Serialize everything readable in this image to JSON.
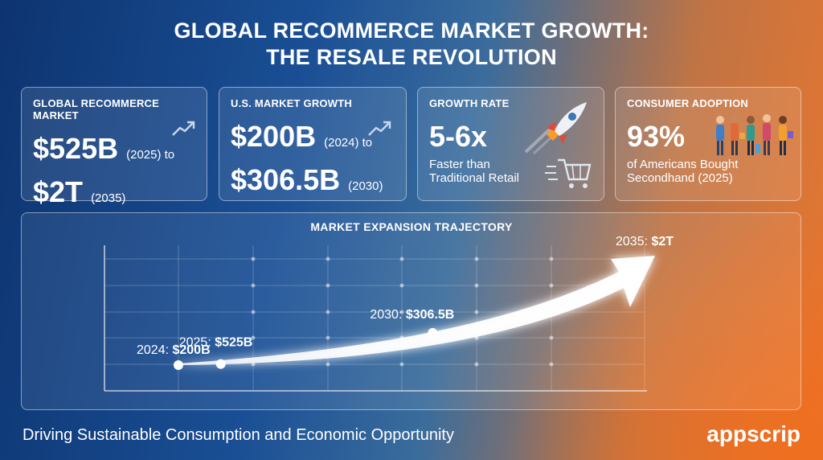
{
  "title": {
    "line1": "GLOBAL RECOMMERCE MARKET GROWTH:",
    "line2": "THE RESALE REVOLUTION"
  },
  "cards": [
    {
      "label": "GLOBAL RECOMMERCE MARKET",
      "big1": "$525B",
      "small1": "(2025) to",
      "big2": "$2T",
      "small2": "(2035)",
      "icon": "trend-up-icon"
    },
    {
      "label": "U.S. MARKET GROWTH",
      "big1": "$200B",
      "small1": "(2024) to",
      "big2": "$306.5B",
      "small2": "(2030)",
      "icon": "trend-up-icon"
    },
    {
      "label": "GROWTH RATE",
      "big1": "5-6x",
      "note1": "Faster than",
      "note2": "Traditional Retail",
      "icon": "rocket-icon"
    },
    {
      "label": "CONSUMER ADOPTION",
      "big1": "93%",
      "note1": "of Americans Bought",
      "note2": "Secondhand (2025)",
      "icon": "shoppers-icon"
    }
  ],
  "chart_data": {
    "type": "line",
    "title": "MARKET EXPANSION TRAJECTORY",
    "points": [
      {
        "year": 2024,
        "prefix": "2024: ",
        "label": "$200B",
        "value": 200
      },
      {
        "year": 2025,
        "prefix": "2025: ",
        "label": "$525B",
        "value": 525
      },
      {
        "year": 2030,
        "prefix": "2030: ",
        "label": "$306.5B",
        "value": 306.5
      },
      {
        "year": 2035,
        "prefix": "2035: ",
        "label": "$2T",
        "value": 2000
      }
    ],
    "grid": true,
    "arrow_color": "#ffffff"
  },
  "footer": "Driving Sustainable Consumption and Economic Opportunity",
  "brand": "appscrip"
}
